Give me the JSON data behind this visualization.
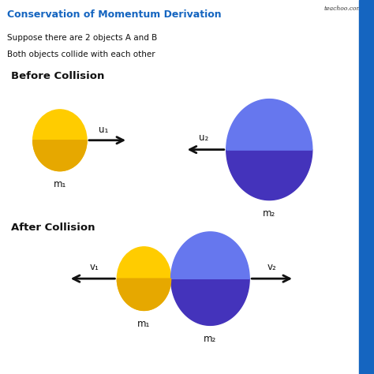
{
  "title": "Conservation of Momentum Derivation",
  "title_color": "#1565C0",
  "watermark": "teachoo.com",
  "line1": "Suppose there are 2 objects A and B",
  "line2": "Both objects collide with each other",
  "before_label": "Before Collision",
  "after_label": "After Collision",
  "bg_color": "#ffffff",
  "yellow_top": "#FFCC00",
  "yellow_bottom": "#E6A800",
  "blue_top": "#6677EE",
  "blue_bottom": "#4433BB",
  "text_color": "#111111",
  "arrow_color": "#111111",
  "m1_label": "m₁",
  "m2_label": "m₂",
  "u1_label": "u₁",
  "u2_label": "u₂",
  "v1_label": "v₁",
  "v2_label": "v₂"
}
